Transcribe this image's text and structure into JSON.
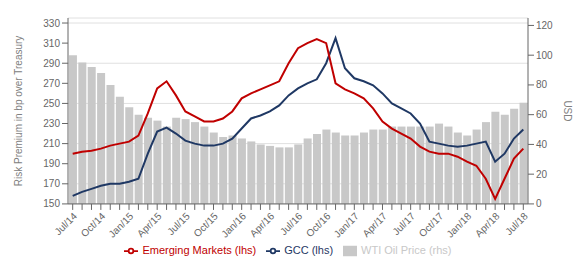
{
  "chart_data": {
    "type": "bar",
    "categories": [
      "Jul/14",
      null,
      null,
      "Oct/14",
      null,
      null,
      "Jan/15",
      null,
      null,
      "Apr/15",
      null,
      null,
      "Jul/15",
      null,
      null,
      "Oct/15",
      null,
      null,
      "Jan/16",
      null,
      null,
      "Apr/16",
      null,
      null,
      "Jul/16",
      null,
      null,
      "Oct/16",
      null,
      null,
      "Jan/17",
      null,
      null,
      "Apr/17",
      null,
      null,
      "Jul/17",
      null,
      null,
      "Oct/17",
      null,
      null,
      "Jan/18",
      null,
      null,
      "Apr/18",
      null,
      null,
      "Jul/18"
    ],
    "series": [
      {
        "name": "WTI Oil Price (rhs)",
        "type": "bar",
        "axis": "y2",
        "color": "#c8c8c8",
        "values": [
          100,
          95,
          92,
          88,
          80,
          72,
          65,
          60,
          58,
          56,
          52,
          58,
          57,
          55,
          52,
          48,
          45,
          46,
          44,
          42,
          40,
          39,
          38,
          38,
          40,
          44,
          47,
          50,
          48,
          46,
          46,
          48,
          50,
          50,
          52,
          52,
          52,
          52,
          52,
          54,
          52,
          48,
          46,
          50,
          55,
          62,
          60,
          64,
          68
        ]
      },
      {
        "name": "GCC (lhs)",
        "type": "line",
        "color": "#1f3864",
        "values": [
          158,
          162,
          165,
          168,
          170,
          170,
          172,
          175,
          200,
          222,
          226,
          220,
          213,
          210,
          208,
          208,
          210,
          215,
          225,
          235,
          238,
          242,
          248,
          258,
          265,
          270,
          274,
          290,
          315,
          285,
          275,
          272,
          268,
          260,
          250,
          245,
          240,
          230,
          212,
          210,
          208,
          207,
          208,
          210,
          212,
          192,
          200,
          215,
          224
        ]
      },
      {
        "name": "Emerging Markets (lhs)",
        "type": "line",
        "color": "#c00000",
        "values": [
          200,
          202,
          203,
          205,
          208,
          210,
          212,
          218,
          240,
          265,
          272,
          258,
          242,
          237,
          232,
          232,
          235,
          242,
          255,
          260,
          264,
          268,
          272,
          290,
          305,
          310,
          314,
          310,
          270,
          264,
          260,
          255,
          245,
          232,
          225,
          220,
          215,
          207,
          202,
          200,
          200,
          197,
          192,
          188,
          175,
          155,
          175,
          195,
          205
        ]
      }
    ],
    "y_label": "Risk Premium in bp over Treasury",
    "y2_label": "USD",
    "ylim": [
      150,
      335
    ],
    "yticks": [
      150,
      170,
      190,
      210,
      230,
      250,
      270,
      290,
      310,
      330
    ],
    "y2lim": [
      0,
      125
    ],
    "y2ticks": [
      0,
      20,
      40,
      60,
      80,
      100,
      120
    ],
    "grid": true,
    "legend": "bottom"
  }
}
